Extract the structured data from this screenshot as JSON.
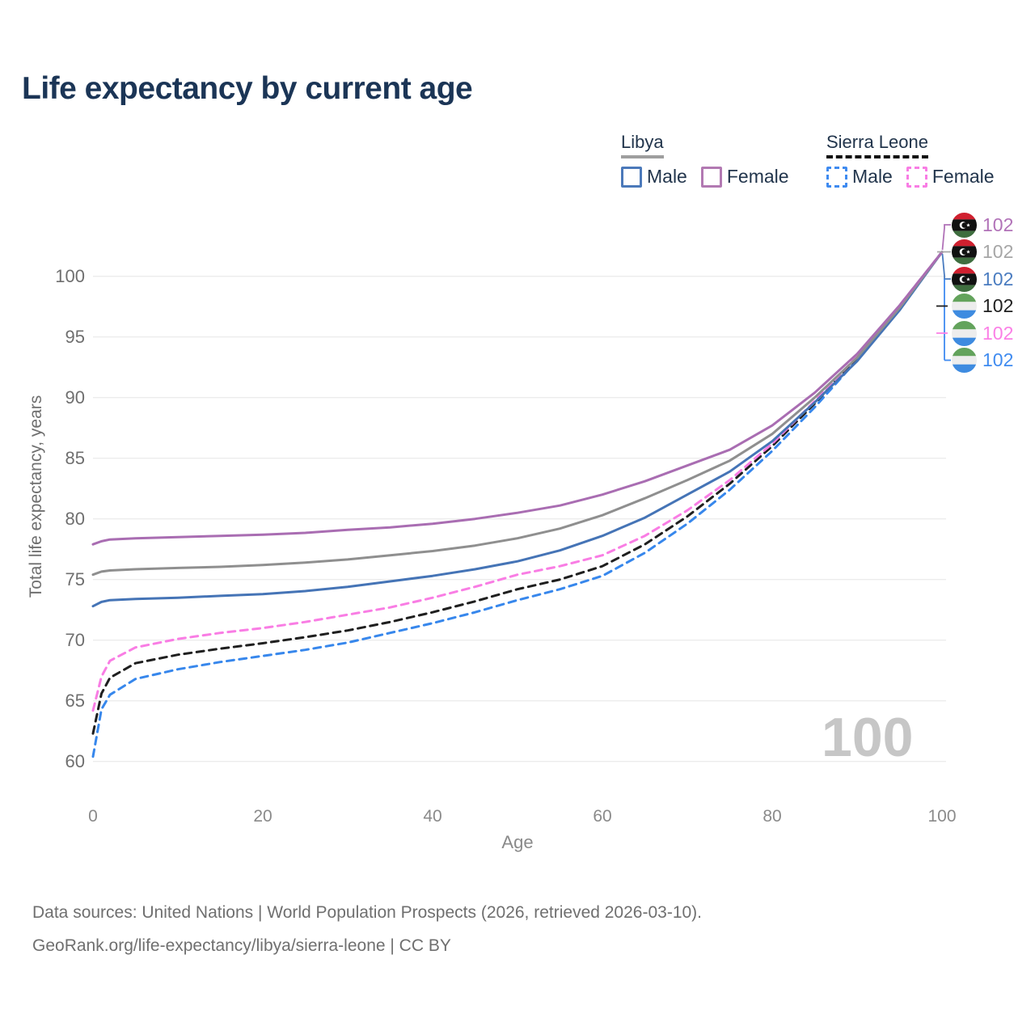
{
  "title": "Life expectancy by current age",
  "watermark": "100",
  "legend": {
    "libya": {
      "label": "Libya",
      "male": "Male",
      "female": "Female"
    },
    "sierra_leone": {
      "label": "Sierra Leone",
      "male": "Male",
      "female": "Female"
    }
  },
  "footer": {
    "line1": "Data sources: United Nations | World Population Prospects (2026, retrieved 2026-03-10).",
    "line2": "GeoRank.org/life-expectancy/libya/sierra-leone | CC BY"
  },
  "chart_data": {
    "type": "line",
    "title": "Life expectancy by current age",
    "xlabel": "Age",
    "ylabel": "Total life expectancy, years",
    "xlim": [
      0,
      100
    ],
    "ylim": [
      60,
      104
    ],
    "grid": true,
    "legend_position": "top-right",
    "x_ticks": [
      0,
      20,
      40,
      60,
      80,
      100
    ],
    "y_ticks": [
      60,
      65,
      70,
      75,
      80,
      85,
      90,
      95,
      100
    ],
    "x": [
      0,
      1,
      2,
      5,
      10,
      15,
      20,
      25,
      30,
      35,
      40,
      45,
      50,
      55,
      60,
      65,
      70,
      75,
      80,
      85,
      90,
      95,
      100
    ],
    "series": [
      {
        "name": "Sierra Leone Male",
        "country": "Sierra Leone",
        "sex": "Male",
        "style": "dashed",
        "color": "#3787ec",
        "values": [
          60.4,
          64.3,
          65.5,
          66.8,
          67.6,
          68.2,
          68.7,
          69.2,
          69.8,
          70.6,
          71.4,
          72.3,
          73.3,
          74.2,
          75.3,
          77.2,
          79.6,
          82.4,
          85.6,
          89.2,
          93.1,
          97.4,
          102
        ]
      },
      {
        "name": "Sierra Leone",
        "country": "Sierra Leone",
        "sex": "Both",
        "style": "dashed",
        "color": "#1f1f1f",
        "values": [
          62.3,
          65.6,
          66.9,
          68.1,
          68.8,
          69.3,
          69.75,
          70.25,
          70.8,
          71.5,
          72.3,
          73.2,
          74.2,
          75.0,
          76.1,
          77.9,
          80.2,
          82.9,
          86.0,
          89.5,
          93.3,
          97.5,
          102
        ]
      },
      {
        "name": "Sierra Leone Female",
        "country": "Sierra Leone",
        "sex": "Female",
        "style": "dashed",
        "color": "#f97de4",
        "values": [
          64.2,
          67.0,
          68.3,
          69.4,
          70.1,
          70.6,
          71.0,
          71.5,
          72.1,
          72.7,
          73.5,
          74.4,
          75.4,
          76.1,
          77.0,
          78.6,
          80.7,
          83.2,
          86.2,
          89.7,
          93.4,
          97.6,
          102
        ]
      },
      {
        "name": "Libya Male",
        "country": "Libya",
        "sex": "Male",
        "style": "solid",
        "color": "#4574b6",
        "values": [
          72.8,
          73.15,
          73.3,
          73.4,
          73.5,
          73.65,
          73.8,
          74.05,
          74.4,
          74.85,
          75.3,
          75.85,
          76.5,
          77.4,
          78.6,
          80.1,
          82.0,
          83.9,
          86.4,
          89.6,
          93.0,
          97.2,
          102
        ]
      },
      {
        "name": "Libya",
        "country": "Libya",
        "sex": "Both",
        "style": "solid",
        "color": "#8f8f8f",
        "values": [
          75.4,
          75.65,
          75.75,
          75.85,
          75.95,
          76.05,
          76.2,
          76.4,
          76.65,
          77.0,
          77.35,
          77.8,
          78.4,
          79.2,
          80.3,
          81.7,
          83.2,
          84.8,
          87.0,
          90.0,
          93.3,
          97.4,
          102
        ]
      },
      {
        "name": "Libya Female",
        "country": "Libya",
        "sex": "Female",
        "style": "solid",
        "color": "#a96db2",
        "values": [
          77.9,
          78.15,
          78.3,
          78.4,
          78.5,
          78.6,
          78.7,
          78.85,
          79.1,
          79.3,
          79.6,
          80.0,
          80.5,
          81.1,
          82.0,
          83.1,
          84.4,
          85.7,
          87.7,
          90.4,
          93.6,
          97.6,
          102
        ]
      }
    ],
    "end_labels": [
      {
        "series": "Libya Female",
        "flag": "libya",
        "value": "102",
        "color": "#b172b8"
      },
      {
        "series": "Libya",
        "flag": "libya",
        "value": "102",
        "color": "#a6a6a6"
      },
      {
        "series": "Libya Male",
        "flag": "libya",
        "value": "102",
        "color": "#4a7cc0"
      },
      {
        "series": "Sierra Leone",
        "flag": "sierra-leone",
        "value": "102",
        "color": "#1f1f1f"
      },
      {
        "series": "Sierra Leone Female",
        "flag": "sierra-leone",
        "value": "102",
        "color": "#fb80e6"
      },
      {
        "series": "Sierra Leone Male",
        "flag": "sierra-leone",
        "value": "102",
        "color": "#3f8bf0"
      }
    ]
  }
}
